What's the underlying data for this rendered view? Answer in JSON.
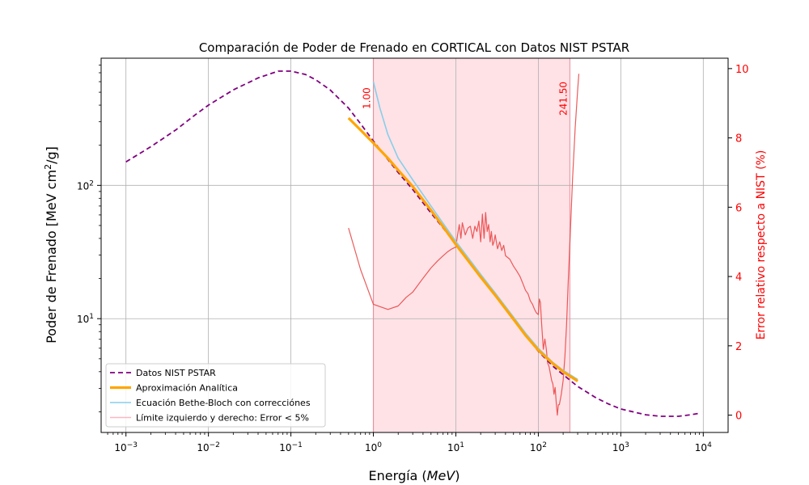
{
  "chart_data": {
    "type": "line",
    "title": "Comparación de Poder de Frenado en CORTICAL con Datos NIST PSTAR",
    "xlabel_prefix": "Energía (",
    "xlabel_unit": "MeV",
    "xlabel_suffix": ")",
    "ylabel_main": "Poder de Frenado [MeV cm",
    "ylabel_sup": "2",
    "ylabel_end": "/g]",
    "y2label": "Error relativo respecto a NIST (%)",
    "x_scale": "log",
    "y_scale": "log",
    "xlim": [
      0.0005,
      20000
    ],
    "ylim": [
      1.4,
      900
    ],
    "y2lim": [
      -0.5,
      10.3
    ],
    "grid": true,
    "legend_position": "lower-left",
    "x_tick_values": [
      0.001,
      0.01,
      0.1,
      1,
      10,
      100,
      1000,
      10000
    ],
    "x_tick_labels": [
      {
        "base": "10",
        "exp": "−3"
      },
      {
        "base": "10",
        "exp": "−2"
      },
      {
        "base": "10",
        "exp": "−1"
      },
      {
        "base": "10",
        "exp": "0"
      },
      {
        "base": "10",
        "exp": "1"
      },
      {
        "base": "10",
        "exp": "2"
      },
      {
        "base": "10",
        "exp": "3"
      },
      {
        "base": "10",
        "exp": "4"
      }
    ],
    "y_tick_values": [
      10,
      100
    ],
    "y_tick_labels": [
      {
        "base": "10",
        "exp": "1"
      },
      {
        "base": "10",
        "exp": "2"
      }
    ],
    "y2_tick_values": [
      0,
      2,
      4,
      6,
      8,
      10
    ],
    "y2_tick_labels": [
      "0",
      "2",
      "4",
      "6",
      "8",
      "10"
    ],
    "boundary_lines": [
      {
        "x": 1.0,
        "label": "1.00"
      },
      {
        "x": 241.5,
        "label": "241.50"
      }
    ],
    "shaded_region": {
      "x_start": 1.0,
      "x_end": 241.5
    },
    "series": [
      {
        "name": "Datos NIST PSTAR",
        "color": "#800080",
        "style": "dashed",
        "axis": "left",
        "x": [
          0.001,
          0.002,
          0.004,
          0.007,
          0.01,
          0.02,
          0.04,
          0.07,
          0.1,
          0.15,
          0.2,
          0.3,
          0.5,
          0.7,
          1,
          2,
          3,
          5,
          7,
          10,
          20,
          30,
          50,
          70,
          100,
          150,
          200,
          300,
          500,
          700,
          1000,
          2000,
          3000,
          5000,
          7000,
          9000
        ],
        "y": [
          150,
          195,
          260,
          340,
          400,
          520,
          640,
          720,
          720,
          680,
          620,
          520,
          380,
          290,
          215,
          125,
          93,
          62,
          48,
          36,
          20.5,
          15,
          9.8,
          7.5,
          5.7,
          4.4,
          3.8,
          3.1,
          2.55,
          2.3,
          2.1,
          1.9,
          1.85,
          1.85,
          1.9,
          1.95
        ]
      },
      {
        "name": "Aproximación Analítica",
        "color": "#ffa500",
        "style": "solid-thick",
        "axis": "left",
        "x": [
          0.5,
          0.7,
          1,
          1.5,
          2,
          3,
          5,
          7,
          10,
          20,
          30,
          50,
          70,
          100,
          150,
          200,
          300
        ],
        "y": [
          320,
          260,
          208,
          160,
          130,
          98,
          65,
          49,
          36,
          20.5,
          15,
          9.9,
          7.5,
          5.8,
          4.6,
          4.0,
          3.4
        ]
      },
      {
        "name": "Ecuación Bethe-Bloch con correcciónes",
        "color": "#87ceeb",
        "style": "solid",
        "axis": "left",
        "x": [
          1,
          1.2,
          1.5,
          2,
          3,
          5,
          7,
          10,
          20,
          30,
          50,
          70,
          100,
          150,
          200,
          300
        ],
        "y": [
          600,
          380,
          240,
          160,
          110,
          70,
          52,
          38,
          21.5,
          15.6,
          10.3,
          7.8,
          6.0,
          4.7,
          4.1,
          3.5
        ]
      },
      {
        "name": "Error relativo",
        "color": "#e84040",
        "style": "solid-thin",
        "axis": "right",
        "x": [
          0.5,
          0.7,
          1,
          1.5,
          2,
          2.5,
          3,
          4,
          5,
          6,
          7,
          8,
          9,
          10,
          10.5,
          11,
          11.5,
          12,
          13,
          14,
          15,
          16,
          17,
          18,
          19,
          20,
          21,
          22,
          23,
          24,
          25,
          26,
          27,
          28,
          29,
          30,
          32,
          34,
          36,
          38,
          40,
          45,
          50,
          55,
          60,
          65,
          70,
          75,
          80,
          85,
          90,
          95,
          100,
          103,
          106,
          110,
          115,
          120,
          125,
          130,
          135,
          140,
          145,
          150,
          155,
          160,
          165,
          170,
          175,
          180,
          190,
          200,
          210,
          220,
          230,
          241.5,
          260,
          280,
          300,
          310
        ],
        "y": [
          5.4,
          4.2,
          3.2,
          3.05,
          3.15,
          3.4,
          3.55,
          3.95,
          4.25,
          4.45,
          4.6,
          4.72,
          4.8,
          4.85,
          5.2,
          5.5,
          5.1,
          5.55,
          5.2,
          5.4,
          5.45,
          5.1,
          5.45,
          5.3,
          5.6,
          5.0,
          5.8,
          5.1,
          5.85,
          5.3,
          5.5,
          5.0,
          5.3,
          4.9,
          5.0,
          5.2,
          4.8,
          5.0,
          4.75,
          4.9,
          4.6,
          4.5,
          4.3,
          4.15,
          4.0,
          3.8,
          3.6,
          3.5,
          3.3,
          3.2,
          3.05,
          2.95,
          2.9,
          3.35,
          3.25,
          2.6,
          1.9,
          2.2,
          1.9,
          1.5,
          1.4,
          1.2,
          1.0,
          0.9,
          0.6,
          0.8,
          0.35,
          0.0,
          0.3,
          0.3,
          0.6,
          1.0,
          1.7,
          2.6,
          3.8,
          5.0,
          6.8,
          8.3,
          9.4,
          9.85
        ]
      }
    ],
    "legend_entries": [
      {
        "label": "Datos NIST PSTAR",
        "color": "#800080",
        "style": "dashed"
      },
      {
        "label": "Aproximación Analítica",
        "color": "#ffa500",
        "style": "solid-thick"
      },
      {
        "label": "Ecuación Bethe-Bloch con correcciónes",
        "color": "#87ceeb",
        "style": "solid"
      },
      {
        "label": "Límite izquierdo y derecho: Error < 5%",
        "color": "#ffb6c1",
        "style": "solid"
      }
    ]
  }
}
